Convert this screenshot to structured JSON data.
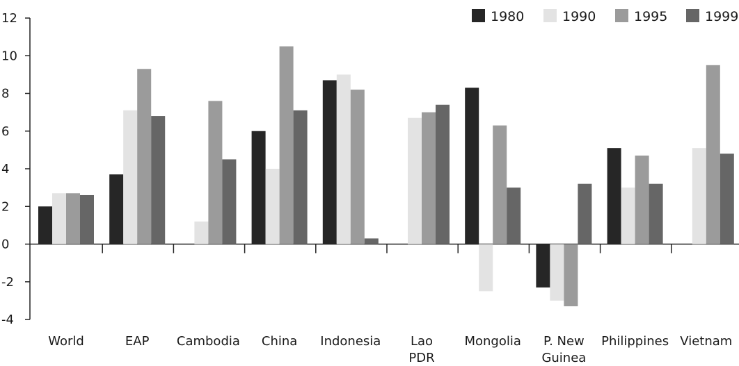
{
  "chart_data": {
    "type": "bar",
    "title": "",
    "xlabel": "",
    "ylabel": "",
    "ylim": [
      -4,
      12
    ],
    "yticks": [
      -4,
      -2,
      0,
      2,
      4,
      6,
      8,
      10,
      12
    ],
    "ytick_labels": [
      "-4",
      "-2",
      "0",
      "2",
      "4",
      "6",
      "8",
      "10",
      "12"
    ],
    "grid": false,
    "legend_position": "top-right",
    "categories": [
      [
        "World"
      ],
      [
        "EAP"
      ],
      [
        "Cambodia"
      ],
      [
        "China"
      ],
      [
        "Indonesia"
      ],
      [
        "Lao",
        "PDR"
      ],
      [
        "Mongolia"
      ],
      [
        "P. New",
        "Guinea"
      ],
      [
        "Philippines"
      ],
      [
        "Vietnam"
      ]
    ],
    "series": [
      {
        "name": "1980",
        "color": "#262626",
        "values": [
          2.0,
          3.7,
          null,
          6.0,
          8.7,
          null,
          8.3,
          -2.3,
          5.1,
          null
        ]
      },
      {
        "name": "1990",
        "color": "#e3e3e3",
        "values": [
          2.7,
          7.1,
          1.2,
          4.0,
          9.0,
          6.7,
          -2.5,
          -3.0,
          3.0,
          5.1
        ]
      },
      {
        "name": "1995",
        "color": "#9b9b9b",
        "values": [
          2.7,
          9.3,
          7.6,
          10.5,
          8.2,
          7.0,
          6.3,
          -3.3,
          4.7,
          9.5
        ]
      },
      {
        "name": "1999",
        "color": "#666666",
        "values": [
          2.6,
          6.8,
          4.5,
          7.1,
          0.3,
          7.4,
          3.0,
          3.2,
          3.2,
          4.8
        ]
      }
    ]
  }
}
